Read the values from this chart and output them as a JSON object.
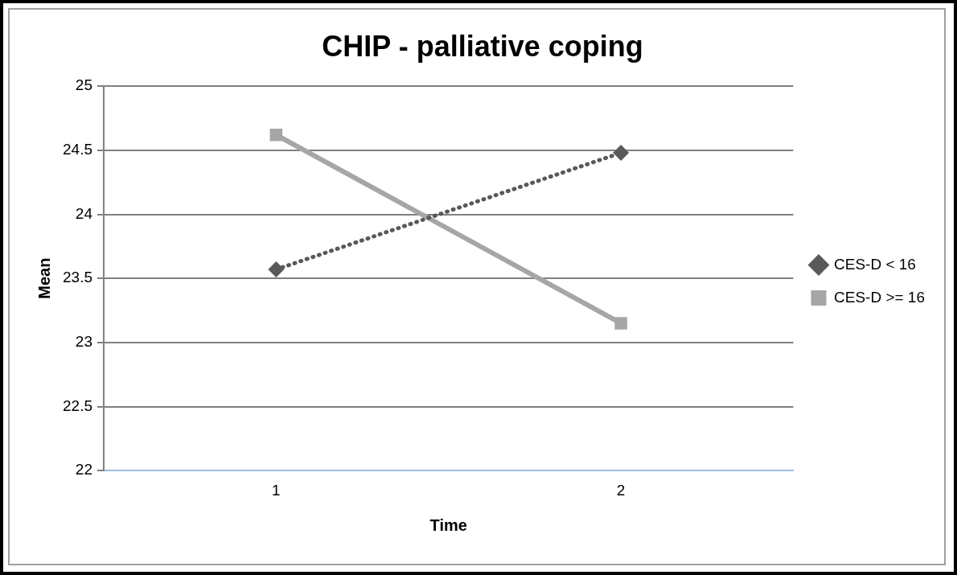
{
  "chart_data": {
    "type": "line",
    "title": "CHIP - palliative coping",
    "xlabel": "Time",
    "ylabel": "Mean",
    "categories": [
      "1",
      "2"
    ],
    "series": [
      {
        "name": "CES-D < 16",
        "color": "#595959",
        "values": [
          23.57,
          24.48
        ],
        "marker": "diamond",
        "line_style": "dotted"
      },
      {
        "name": "CES-D >= 16",
        "color": "#a6a6a6",
        "values": [
          24.62,
          23.15
        ],
        "marker": "square",
        "line_style": "solid"
      }
    ],
    "ylim": [
      22,
      25
    ],
    "yticks": [
      22,
      22.5,
      23,
      23.5,
      24,
      24.5,
      25
    ],
    "grid": "y",
    "legend": "right"
  }
}
